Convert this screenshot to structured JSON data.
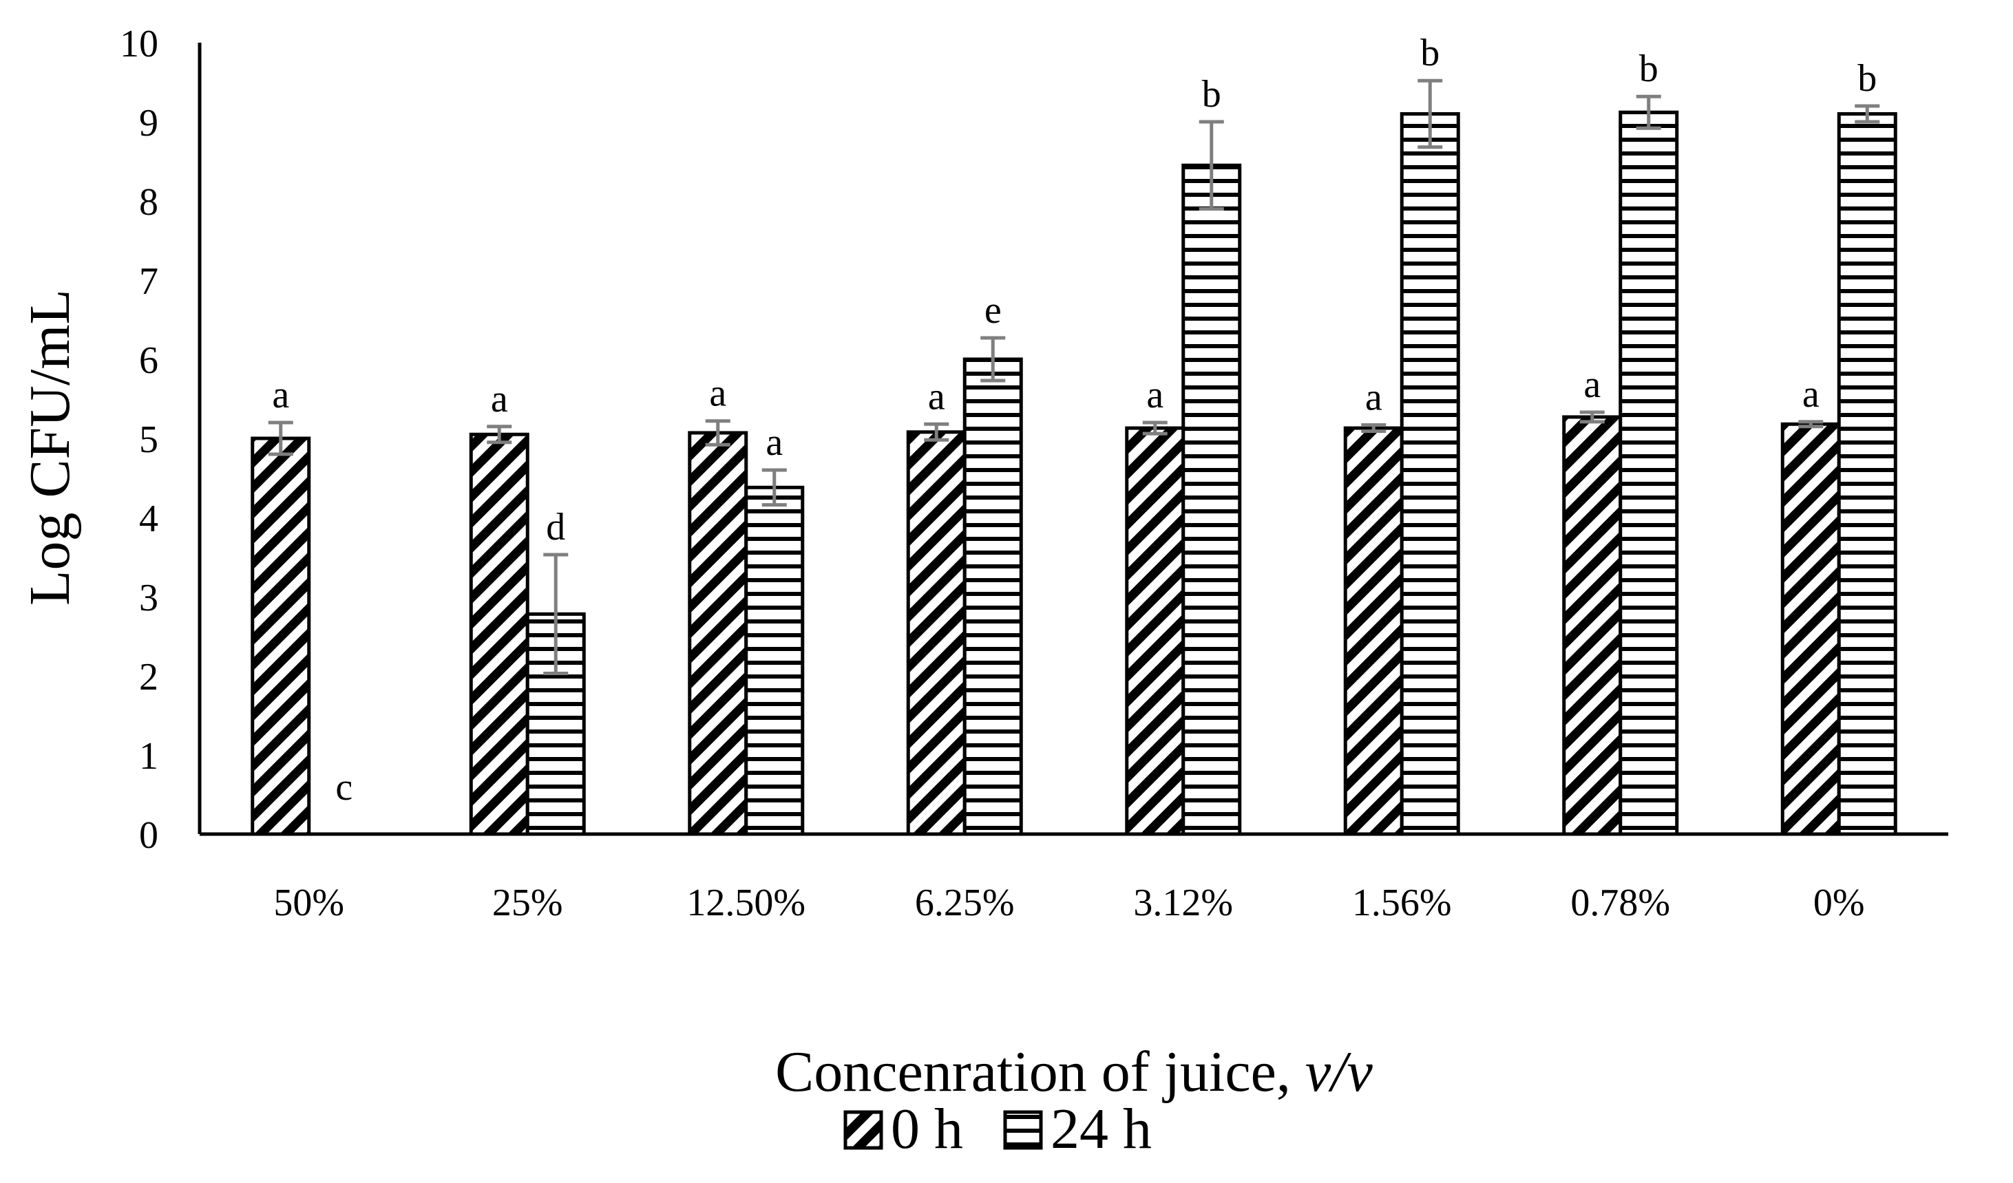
{
  "chart_data": {
    "type": "bar",
    "title": "",
    "xlabel": "Concenration of juice, ",
    "xlabel_italic": "v/v",
    "ylabel": "Log CFU/mL",
    "ylim": [
      0,
      10
    ],
    "yticks": [
      "0",
      "1",
      "2",
      "3",
      "4",
      "5",
      "6",
      "7",
      "8",
      "9",
      "10"
    ],
    "categories": [
      "50%",
      "25%",
      "12.50%",
      "6.25%",
      "3.12%",
      "1.56%",
      "0.78%",
      "0%"
    ],
    "series": [
      {
        "name": "0 h",
        "pattern": "diagonal",
        "values": [
          5.0,
          5.05,
          5.07,
          5.08,
          5.13,
          5.13,
          5.27,
          5.18
        ],
        "errors": [
          0.2,
          0.1,
          0.15,
          0.1,
          0.07,
          0.04,
          0.06,
          0.03
        ],
        "letters": [
          "a",
          "a",
          "a",
          "a",
          "a",
          "a",
          "a",
          "a"
        ]
      },
      {
        "name": "24 h",
        "pattern": "horizontal",
        "values": [
          0,
          2.78,
          4.38,
          6.0,
          8.45,
          9.1,
          9.12,
          9.1
        ],
        "errors": [
          0,
          0.75,
          0.22,
          0.27,
          0.55,
          0.42,
          0.2,
          0.1
        ],
        "letters": [
          "c",
          "d",
          "a",
          "e",
          "b",
          "b",
          "b",
          "b"
        ]
      }
    ],
    "legend_position": "bottom",
    "colors": {
      "bar_stroke": "#000000",
      "error_bar": "#7f7f7f",
      "bar_fill": "#ffffff"
    }
  }
}
